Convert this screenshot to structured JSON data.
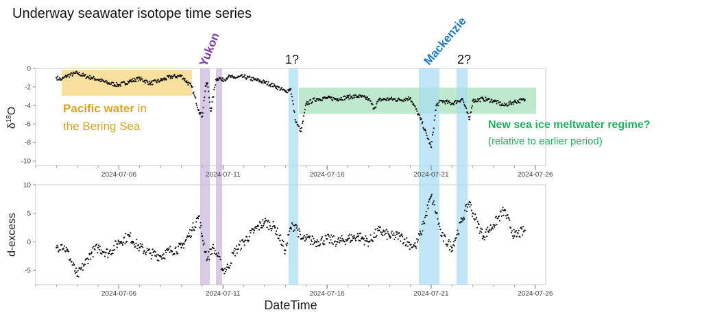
{
  "title": "Underway seawater isotope time series",
  "colors": {
    "pacific": "#f6c650",
    "pacific_text": "#d9a520",
    "yukon": "#c9b3db",
    "yukon_text": "#7a3fa8",
    "mackenzie": "#a7dbf3",
    "mackenzie_text": "#1f7ac2",
    "meltwater": "#7dd39a",
    "meltwater_text": "#21b061",
    "points": "#111111"
  },
  "annotations": {
    "yukon": "Yukon",
    "mackenzie": "Mackenzie",
    "q1": "1?",
    "q2": "2?",
    "pacific_bold": "Pacific water",
    "pacific_rest1": " in",
    "pacific_line2": "the Bering Sea",
    "meltwater_line1": "New sea ice meltwater regime?",
    "meltwater_line2": "(relative to earlier period)"
  },
  "chart_data": [
    {
      "type": "scatter",
      "ylabel": "δ18O",
      "ylabel_base": "δ",
      "ylabel_sup": "18",
      "ylabel_end": "O",
      "xlabel": "",
      "xlim": [
        "2024-07-02T00:00",
        "2024-07-26T12:00"
      ],
      "ylim": [
        -10.5,
        0
      ],
      "yticks": [
        0,
        -2,
        -4,
        -6,
        -8,
        -10
      ],
      "ytick_labels": [
        "0",
        "-2",
        "-4",
        "-6",
        "-8",
        "-10"
      ],
      "xtick_labels": [
        "2024-07-06",
        "2024-07-11",
        "2024-07-16",
        "2024-07-21",
        "2024-07-26"
      ],
      "xtick_dates": [
        "2024-07-06",
        "2024-07-11",
        "2024-07-16",
        "2024-07-21",
        "2024-07-26"
      ],
      "series": [
        {
          "x": [
            "2024-07-03T00:00",
            "2024-07-03T06:00",
            "2024-07-03T12:00",
            "2024-07-04T00:00",
            "2024-07-04T08:00",
            "2024-07-04T16:00",
            "2024-07-05T00:00",
            "2024-07-05T12:00",
            "2024-07-06T00:00",
            "2024-07-06T12:00",
            "2024-07-07T00:00",
            "2024-07-07T12:00",
            "2024-07-08T00:00",
            "2024-07-08T12:00",
            "2024-07-09T00:00",
            "2024-07-09T12:00",
            "2024-07-09T20:00",
            "2024-07-10T00:00",
            "2024-07-10T04:00",
            "2024-07-10T06:00",
            "2024-07-10T10:00",
            "2024-07-10T16:00",
            "2024-07-10T20:00",
            "2024-07-10T23:00",
            "2024-07-11T06:00",
            "2024-07-11T12:00",
            "2024-07-12T00:00",
            "2024-07-12T12:00",
            "2024-07-13T00:00",
            "2024-07-13T12:00",
            "2024-07-14T00:00",
            "2024-07-14T06:00",
            "2024-07-14T12:00",
            "2024-07-14T18:00",
            "2024-07-15T00:00",
            "2024-07-15T12:00",
            "2024-07-16T00:00",
            "2024-07-16T12:00",
            "2024-07-17T00:00",
            "2024-07-17T12:00",
            "2024-07-18T00:00",
            "2024-07-18T06:00",
            "2024-07-18T12:00",
            "2024-07-19T00:00",
            "2024-07-19T12:00",
            "2024-07-20T00:00",
            "2024-07-20T12:00",
            "2024-07-21T00:00",
            "2024-07-21T06:00",
            "2024-07-21T12:00",
            "2024-07-22T00:00",
            "2024-07-22T12:00",
            "2024-07-22T20:00",
            "2024-07-23T00:00",
            "2024-07-23T12:00",
            "2024-07-24T00:00",
            "2024-07-24T12:00",
            "2024-07-25T00:00",
            "2024-07-25T12:00"
          ],
          "y": [
            -1.0,
            -1.2,
            -0.8,
            -0.5,
            -0.8,
            -1.0,
            -1.2,
            -1.6,
            -1.8,
            -1.4,
            -1.1,
            -1.6,
            -1.3,
            -0.9,
            -0.8,
            -2.0,
            -4.5,
            -5.2,
            -1.9,
            -1.6,
            -4.6,
            -1.2,
            -1.0,
            -1.3,
            -0.9,
            -1.0,
            -0.9,
            -1.2,
            -1.5,
            -1.9,
            -2.5,
            -2.2,
            -5.8,
            -6.8,
            -3.8,
            -3.3,
            -3.2,
            -3.3,
            -3.1,
            -3.0,
            -3.3,
            -4.3,
            -3.4,
            -3.3,
            -3.4,
            -3.2,
            -5.5,
            -8.5,
            -4.0,
            -3.5,
            -3.8,
            -3.3,
            -5.5,
            -3.5,
            -3.3,
            -3.5,
            -4.0,
            -3.6,
            -3.4
          ]
        }
      ]
    },
    {
      "type": "scatter",
      "ylabel": "d-excess",
      "xlabel": "DateTime",
      "xlim": [
        "2024-07-02T00:00",
        "2024-07-26T12:00"
      ],
      "ylim": [
        -7.5,
        10
      ],
      "yticks": [
        10,
        5,
        0,
        -5
      ],
      "ytick_labels": [
        "10",
        "5",
        "0",
        "-5"
      ],
      "xtick_labels": [
        "2024-07-06",
        "2024-07-11",
        "2024-07-16",
        "2024-07-21",
        "2024-07-26"
      ],
      "xtick_dates": [
        "2024-07-06",
        "2024-07-11",
        "2024-07-16",
        "2024-07-21",
        "2024-07-26"
      ],
      "series": [
        {
          "x": [
            "2024-07-03T00:00",
            "2024-07-03T06:00",
            "2024-07-03T12:00",
            "2024-07-04T00:00",
            "2024-07-04T08:00",
            "2024-07-04T16:00",
            "2024-07-05T00:00",
            "2024-07-05T12:00",
            "2024-07-06T00:00",
            "2024-07-06T12:00",
            "2024-07-07T00:00",
            "2024-07-07T12:00",
            "2024-07-08T00:00",
            "2024-07-08T12:00",
            "2024-07-09T00:00",
            "2024-07-09T12:00",
            "2024-07-09T20:00",
            "2024-07-10T00:00",
            "2024-07-10T06:00",
            "2024-07-10T12:00",
            "2024-07-10T18:00",
            "2024-07-11T00:00",
            "2024-07-11T06:00",
            "2024-07-11T12:00",
            "2024-07-12T00:00",
            "2024-07-12T12:00",
            "2024-07-13T00:00",
            "2024-07-13T12:00",
            "2024-07-14T00:00",
            "2024-07-14T06:00",
            "2024-07-14T12:00",
            "2024-07-14T18:00",
            "2024-07-15T00:00",
            "2024-07-15T12:00",
            "2024-07-16T00:00",
            "2024-07-16T12:00",
            "2024-07-17T00:00",
            "2024-07-17T12:00",
            "2024-07-18T00:00",
            "2024-07-18T12:00",
            "2024-07-19T00:00",
            "2024-07-19T12:00",
            "2024-07-20T00:00",
            "2024-07-20T06:00",
            "2024-07-20T12:00",
            "2024-07-21T00:00",
            "2024-07-21T06:00",
            "2024-07-21T12:00",
            "2024-07-22T00:00",
            "2024-07-22T12:00",
            "2024-07-22T20:00",
            "2024-07-23T00:00",
            "2024-07-23T12:00",
            "2024-07-24T00:00",
            "2024-07-24T12:00",
            "2024-07-25T00:00",
            "2024-07-25T12:00"
          ],
          "y": [
            -1.0,
            -0.5,
            -1.5,
            -6.0,
            -4.0,
            -2.0,
            -1.0,
            -2.0,
            0.0,
            1.0,
            -1.0,
            -2.0,
            -2.5,
            -1.5,
            -1.0,
            2.0,
            4.5,
            1.0,
            -3.0,
            -1.0,
            -2.5,
            -5.0,
            -4.5,
            -2.0,
            0.0,
            2.0,
            3.5,
            2.5,
            -1.5,
            2.5,
            3.0,
            0.5,
            0.5,
            0.0,
            0.5,
            0.0,
            0.5,
            1.0,
            0.0,
            2.0,
            1.0,
            1.0,
            -0.5,
            -0.8,
            1.5,
            8.0,
            5.0,
            1.0,
            -1.0,
            4.0,
            7.0,
            5.0,
            1.0,
            3.0,
            5.5,
            1.0,
            2.0
          ]
        }
      ]
    }
  ]
}
